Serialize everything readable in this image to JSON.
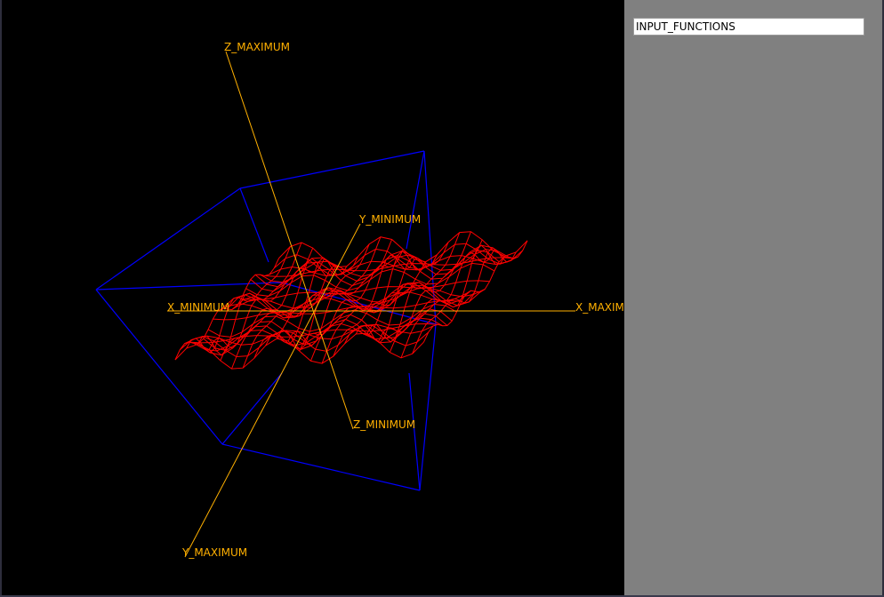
{
  "colors": {
    "viewport_background": "#000000",
    "panel_background": "#808080",
    "axis_color": "#ffb000",
    "bounding_box_color": "#0000ff",
    "surface_color": "#ff0000"
  },
  "viewport": {
    "axis_labels": {
      "z_max": "Z_MAXIMUM",
      "z_min": "Z_MINIMUM",
      "y_min": "Y_MINIMUM",
      "y_max": "Y_MAXIMUM",
      "x_min": "X_MINIMUM",
      "x_max": "X_MAXIM"
    }
  },
  "side_panel": {
    "input_functions": {
      "value": "INPUT_FUNCTIONS"
    }
  }
}
